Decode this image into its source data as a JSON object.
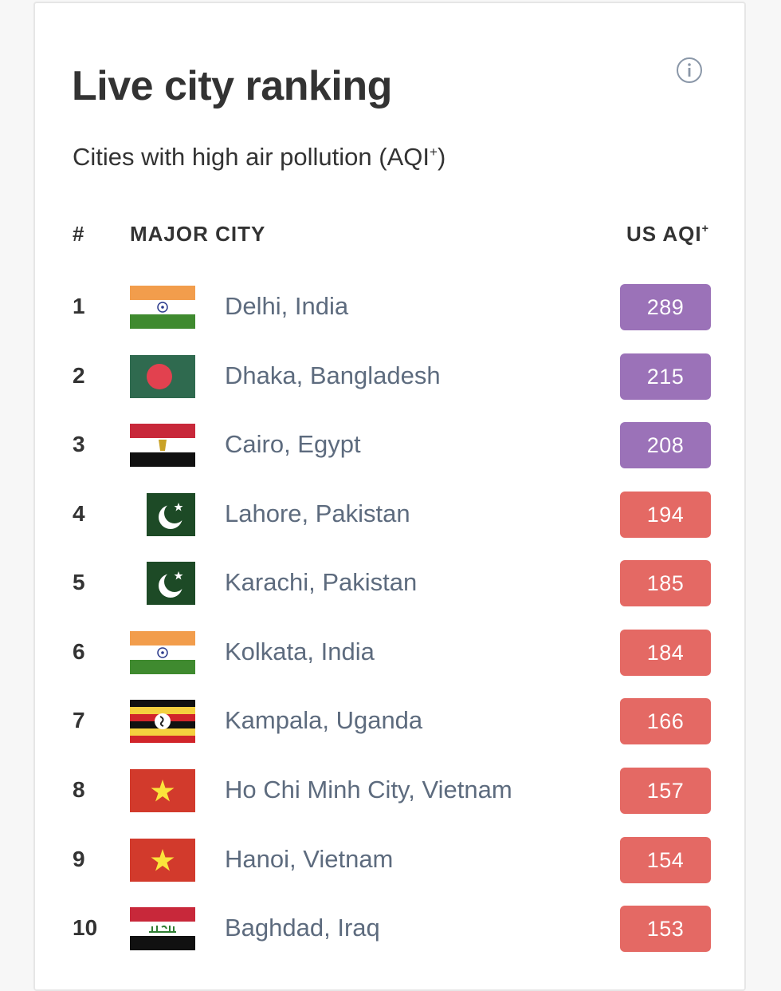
{
  "header": {
    "title": "Live city ranking",
    "subtitle_main": "Cities with high air pollution (AQI",
    "subtitle_sup": "+",
    "subtitle_end": ")",
    "info_icon": "info-circle-icon"
  },
  "columns": {
    "rank": "#",
    "city": "MAJOR CITY",
    "aqi": "US AQI",
    "aqi_sup": "+"
  },
  "colors": {
    "very_unhealthy": "#9b72b8",
    "unhealthy": "#e46964"
  },
  "rows": [
    {
      "rank": "1",
      "city": "Delhi, India",
      "aqi": "289",
      "flag": "india-flag-icon"
    },
    {
      "rank": "2",
      "city": "Dhaka, Bangladesh",
      "aqi": "215",
      "flag": "bangladesh-flag-icon"
    },
    {
      "rank": "3",
      "city": "Cairo, Egypt",
      "aqi": "208",
      "flag": "egypt-flag-icon"
    },
    {
      "rank": "4",
      "city": "Lahore, Pakistan",
      "aqi": "194",
      "flag": "pakistan-flag-icon"
    },
    {
      "rank": "5",
      "city": "Karachi, Pakistan",
      "aqi": "185",
      "flag": "pakistan-flag-icon"
    },
    {
      "rank": "6",
      "city": "Kolkata, India",
      "aqi": "184",
      "flag": "india-flag-icon"
    },
    {
      "rank": "7",
      "city": "Kampala, Uganda",
      "aqi": "166",
      "flag": "uganda-flag-icon"
    },
    {
      "rank": "8",
      "city": "Ho Chi Minh City, Vietnam",
      "aqi": "157",
      "flag": "vietnam-flag-icon"
    },
    {
      "rank": "9",
      "city": "Hanoi, Vietnam",
      "aqi": "154",
      "flag": "vietnam-flag-icon"
    },
    {
      "rank": "10",
      "city": "Baghdad, Iraq",
      "aqi": "153",
      "flag": "iraq-flag-icon"
    }
  ]
}
